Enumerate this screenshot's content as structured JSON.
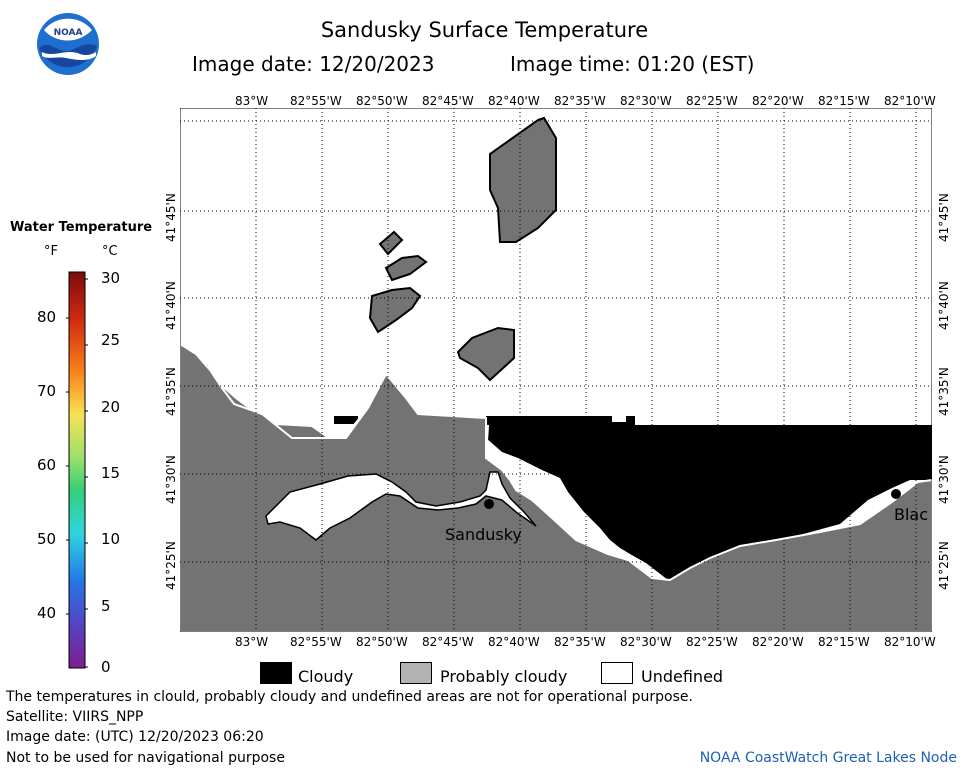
{
  "header": {
    "title": "Sandusky Surface Temperature",
    "image_date": "Image date: 12/20/2023",
    "image_time": "Image time: 01:20 (EST)",
    "logo_text": "NOAA"
  },
  "legend": {
    "title": "Water Temperature",
    "unit_f": "°F",
    "unit_c": "°C",
    "fahrenheit_ticks": [
      "80",
      "70",
      "60",
      "50",
      "40"
    ],
    "celsius_ticks": [
      "30",
      "25",
      "20",
      "15",
      "10",
      "5",
      "0"
    ]
  },
  "map": {
    "longitude_labels": [
      "83°W",
      "82°55'W",
      "82°50'W",
      "82°45'W",
      "82°40'W",
      "82°35'W",
      "82°30'W",
      "82°25'W",
      "82°20'W",
      "82°15'W",
      "82°10'W"
    ],
    "latitude_labels": [
      "41°45'N",
      "41°40'N",
      "41°35'N",
      "41°30'N",
      "41°25'N"
    ],
    "city_sandusky": "Sandusky",
    "city_partial": "Blac",
    "colors": {
      "cloudy": "#000000",
      "probably_cloudy": "#737373",
      "undefined": "#ffffff"
    }
  },
  "key": {
    "cloudy": "Cloudy",
    "probably_cloudy": "Probably cloudy",
    "undefined": "Undefined"
  },
  "footer": {
    "disclaimer": "The temperatures in clould, probably cloudy and undefined areas are not for operational purpose.",
    "satellite": "Satellite: VIIRS_NPP",
    "utc_date": "Image date: (UTC) 12/20/2023  06:20",
    "navigation": "Not to be used for navigational purpose",
    "credit": "NOAA CoastWatch Great Lakes Node"
  }
}
